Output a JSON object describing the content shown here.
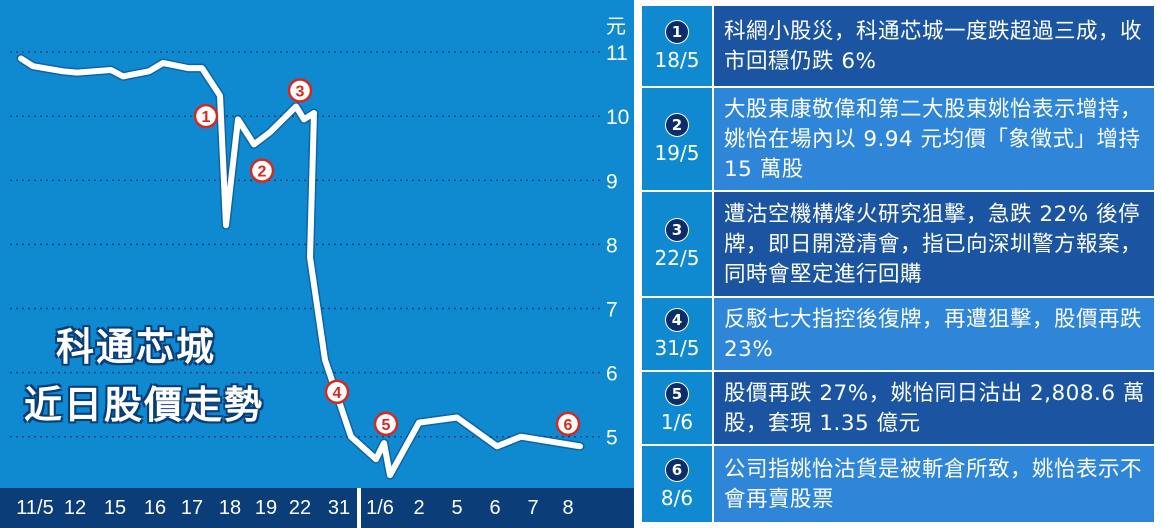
{
  "title": {
    "line1": "科通芯城",
    "line2": "近日股價走勢"
  },
  "chart_data": {
    "type": "line",
    "y_unit": "元",
    "ylim": [
      4.2,
      11.5
    ],
    "y_ticks": [
      5,
      6,
      7,
      8,
      9,
      10,
      11
    ],
    "x_ticks": [
      "11/5",
      "12",
      "15",
      "16",
      "17",
      "18",
      "19",
      "22",
      "31",
      "1/6",
      "2",
      "5",
      "6",
      "7",
      "8"
    ],
    "series": [
      {
        "values": [
          {
            "x": "11/5",
            "y": 10.9
          },
          {
            "x": "11/5",
            "y": 10.78
          },
          {
            "x": "12",
            "y": 10.7
          },
          {
            "x": "12",
            "y": 10.68
          },
          {
            "x": "15",
            "y": 10.72
          },
          {
            "x": "15",
            "y": 10.62
          },
          {
            "x": "16",
            "y": 10.7
          },
          {
            "x": "16",
            "y": 10.83
          },
          {
            "x": "17",
            "y": 10.75
          },
          {
            "x": "17",
            "y": 10.75
          },
          {
            "x": "18",
            "y": 10.32
          },
          {
            "x": "18",
            "y": 8.3
          },
          {
            "x": "18",
            "y": 9.95
          },
          {
            "x": "19",
            "y": 9.56
          },
          {
            "x": "19",
            "y": 9.75
          },
          {
            "x": "22",
            "y": 10.15
          },
          {
            "x": "22",
            "y": 9.95
          },
          {
            "x": "22",
            "y": 10.05
          },
          {
            "x": "22",
            "y": 7.8
          },
          {
            "x": "31",
            "y": 6.2
          },
          {
            "x": "31",
            "y": 5.0
          },
          {
            "x": "1/6",
            "y": 4.65
          },
          {
            "x": "1/6",
            "y": 4.9
          },
          {
            "x": "1/6",
            "y": 4.4
          },
          {
            "x": "2",
            "y": 5.22
          },
          {
            "x": "5",
            "y": 5.3
          },
          {
            "x": "6",
            "y": 4.85
          },
          {
            "x": "7",
            "y": 5.0
          },
          {
            "x": "8",
            "y": 4.85
          }
        ]
      }
    ],
    "annotations": [
      {
        "label": "1",
        "x": "18",
        "y": 10.0
      },
      {
        "label": "2",
        "x": "19",
        "y": 9.15
      },
      {
        "label": "3",
        "x": "22",
        "y": 10.4
      },
      {
        "label": "4",
        "x": "31",
        "y": 5.7
      },
      {
        "label": "5",
        "x": "1/6",
        "y": 5.2
      },
      {
        "label": "6",
        "x": "8",
        "y": 5.2
      }
    ]
  },
  "events": [
    {
      "badge": "1",
      "date": "18/5",
      "text": "科網小股災，科通芯城一度跌超過三成，收市回穩仍跌 6%"
    },
    {
      "badge": "2",
      "date": "19/5",
      "text": "大股東康敬偉和第二大股東姚怡表示增持，姚怡在場內以 9.94 元均價「象徵式」增持 15 萬股"
    },
    {
      "badge": "3",
      "date": "22/5",
      "text": "遭沽空機構烽火研究狙擊，急跌 22% 後停牌，即日開澄清會，指已向深圳警方報案，同時會堅定進行回購"
    },
    {
      "badge": "4",
      "date": "31/5",
      "text": "反駁七大指控後復牌，再遭狙擊，股價再跌 23%"
    },
    {
      "badge": "5",
      "date": "1/6",
      "text": "股價再跌 27%，姚怡同日沽出 2,808.6 萬股，套現 1.35 億元"
    },
    {
      "badge": "6",
      "date": "8/6",
      "text": "公司指姚怡沽貨是被斬倉所致，姚怡表示不會再賣股票"
    }
  ],
  "colors": {
    "panel": "#0f8ad0",
    "row_dark": "#1b54a0",
    "row_light": "#2f86d8",
    "axis_bar": "#0b3d78",
    "line": "#ffffff",
    "marker": "#d8281e",
    "badge": "#0b2d6a"
  }
}
